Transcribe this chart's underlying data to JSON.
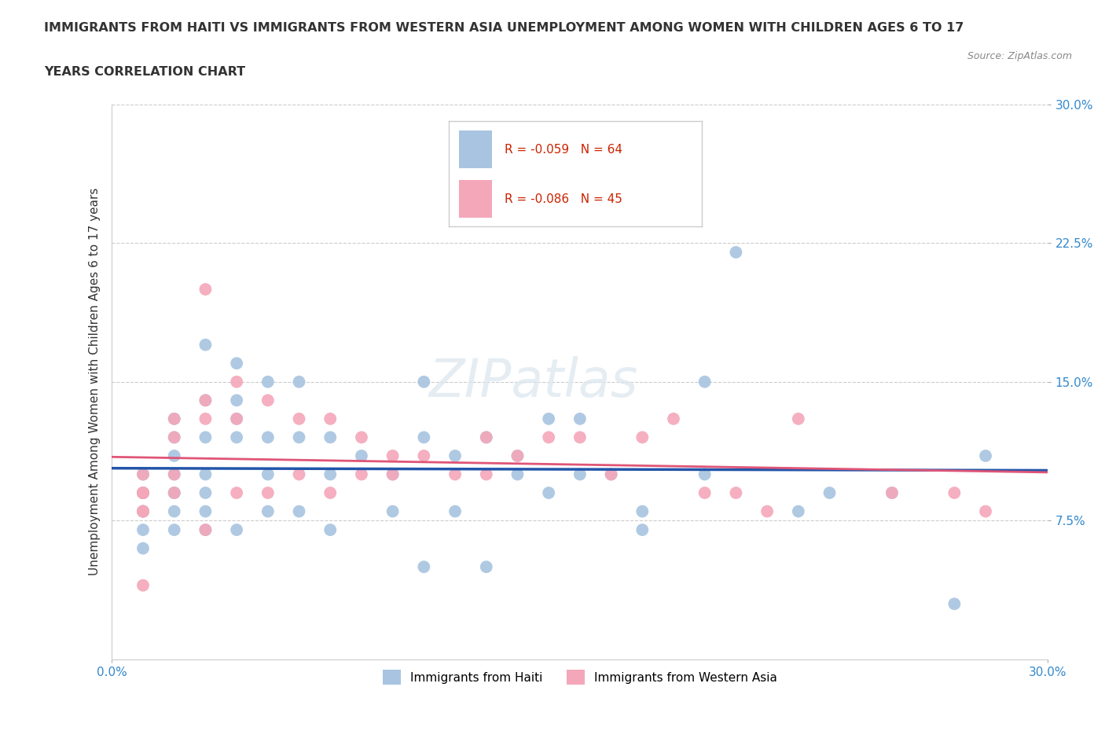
{
  "title_line1": "IMMIGRANTS FROM HAITI VS IMMIGRANTS FROM WESTERN ASIA UNEMPLOYMENT AMONG WOMEN WITH CHILDREN AGES 6 TO 17",
  "title_line2": "YEARS CORRELATION CHART",
  "source": "Source: ZipAtlas.com",
  "ylabel": "Unemployment Among Women with Children Ages 6 to 17 years",
  "xlim": [
    0.0,
    0.3
  ],
  "ylim": [
    0.0,
    0.3
  ],
  "ytick_vals": [
    0.075,
    0.15,
    0.225,
    0.3
  ],
  "legend1_label": "Immigrants from Haiti",
  "legend2_label": "Immigrants from Western Asia",
  "R_haiti": -0.059,
  "N_haiti": 64,
  "R_wasia": -0.086,
  "N_wasia": 45,
  "haiti_color": "#a8c4e0",
  "wasia_color": "#f4a7b9",
  "haiti_line_color": "#2255aa",
  "wasia_line_color": "#e05577",
  "background_color": "#ffffff",
  "haiti_x": [
    0.01,
    0.01,
    0.01,
    0.01,
    0.01,
    0.01,
    0.01,
    0.02,
    0.02,
    0.02,
    0.02,
    0.02,
    0.02,
    0.02,
    0.02,
    0.03,
    0.03,
    0.03,
    0.03,
    0.03,
    0.03,
    0.03,
    0.04,
    0.04,
    0.04,
    0.04,
    0.04,
    0.05,
    0.05,
    0.05,
    0.05,
    0.06,
    0.06,
    0.06,
    0.07,
    0.07,
    0.07,
    0.08,
    0.09,
    0.09,
    0.1,
    0.1,
    0.1,
    0.11,
    0.11,
    0.12,
    0.12,
    0.13,
    0.13,
    0.14,
    0.14,
    0.15,
    0.15,
    0.16,
    0.17,
    0.17,
    0.19,
    0.19,
    0.2,
    0.22,
    0.23,
    0.25,
    0.27,
    0.28
  ],
  "haiti_y": [
    0.1,
    0.09,
    0.09,
    0.08,
    0.08,
    0.07,
    0.06,
    0.13,
    0.12,
    0.11,
    0.1,
    0.09,
    0.09,
    0.08,
    0.07,
    0.17,
    0.14,
    0.12,
    0.1,
    0.09,
    0.08,
    0.07,
    0.16,
    0.14,
    0.13,
    0.12,
    0.07,
    0.15,
    0.12,
    0.1,
    0.08,
    0.15,
    0.12,
    0.08,
    0.12,
    0.1,
    0.07,
    0.11,
    0.1,
    0.08,
    0.15,
    0.12,
    0.05,
    0.11,
    0.08,
    0.12,
    0.05,
    0.11,
    0.1,
    0.13,
    0.09,
    0.13,
    0.1,
    0.1,
    0.08,
    0.07,
    0.15,
    0.1,
    0.22,
    0.08,
    0.09,
    0.09,
    0.03,
    0.11
  ],
  "wasia_x": [
    0.01,
    0.01,
    0.01,
    0.01,
    0.01,
    0.01,
    0.01,
    0.02,
    0.02,
    0.02,
    0.02,
    0.03,
    0.03,
    0.03,
    0.03,
    0.04,
    0.04,
    0.04,
    0.05,
    0.05,
    0.06,
    0.06,
    0.07,
    0.07,
    0.08,
    0.08,
    0.09,
    0.09,
    0.1,
    0.11,
    0.12,
    0.12,
    0.13,
    0.14,
    0.15,
    0.16,
    0.17,
    0.18,
    0.19,
    0.2,
    0.21,
    0.22,
    0.25,
    0.27,
    0.28
  ],
  "wasia_y": [
    0.1,
    0.09,
    0.09,
    0.09,
    0.08,
    0.08,
    0.04,
    0.13,
    0.12,
    0.1,
    0.09,
    0.2,
    0.14,
    0.13,
    0.07,
    0.15,
    0.13,
    0.09,
    0.14,
    0.09,
    0.13,
    0.1,
    0.13,
    0.09,
    0.12,
    0.1,
    0.11,
    0.1,
    0.11,
    0.1,
    0.12,
    0.1,
    0.11,
    0.12,
    0.12,
    0.1,
    0.12,
    0.13,
    0.09,
    0.09,
    0.08,
    0.13,
    0.09,
    0.09,
    0.08
  ]
}
